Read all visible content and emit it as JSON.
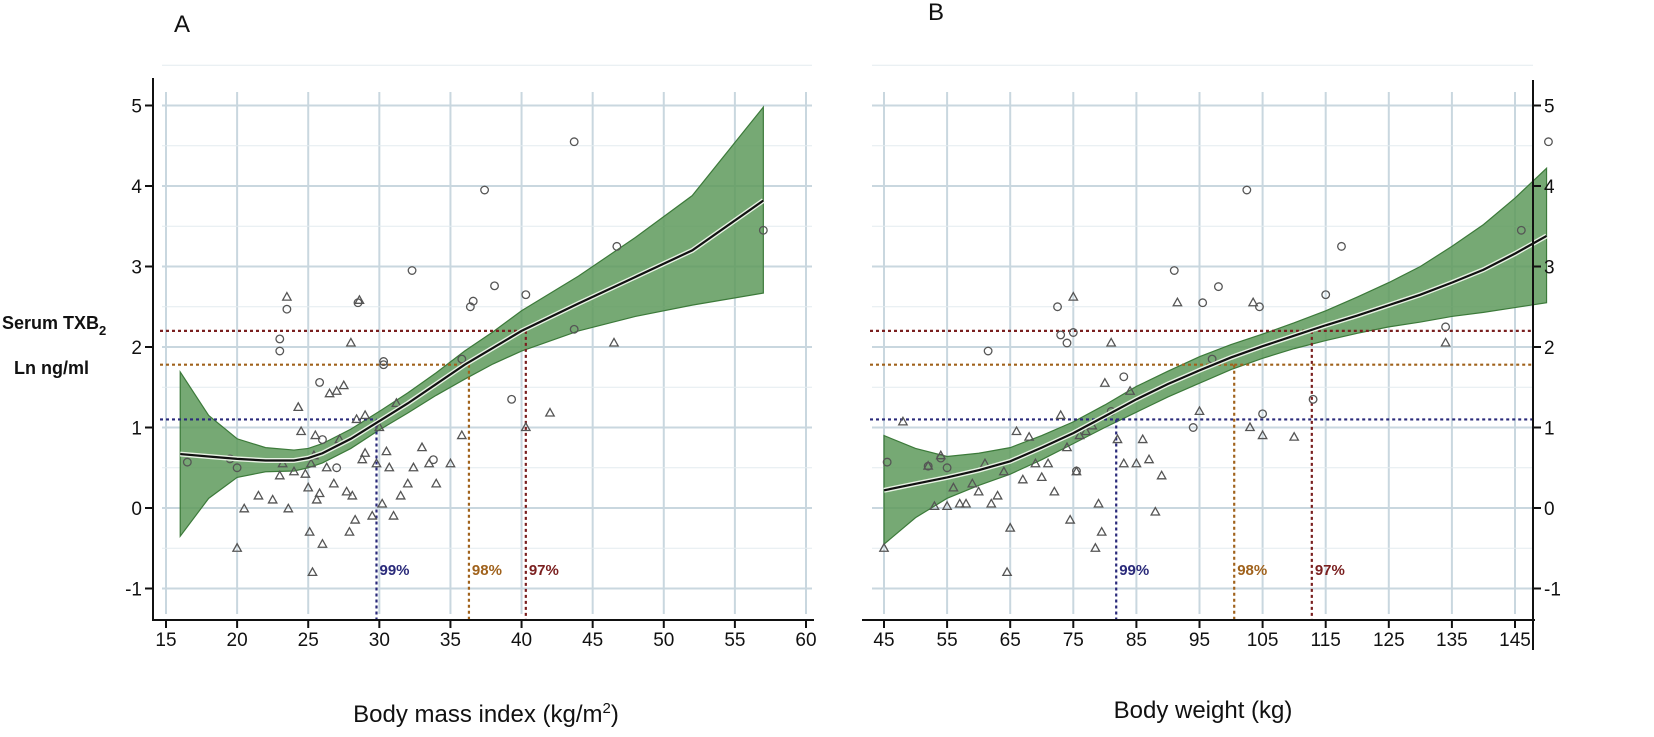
{
  "y_label": {
    "line1": "Serum TXB",
    "sub": "2",
    "line2": "Ln ng/ml"
  },
  "colors": {
    "band": "#5e9a5c",
    "band_edge": "#3c7a3a",
    "grid": "#c9d7df",
    "p99": "#2a2a7a",
    "p98": "#a0621c",
    "p97": "#7a1f1f",
    "point": "#555555"
  },
  "chart_data": [
    {
      "panel": "A",
      "type": "line",
      "xlabel": "Body mass index (kg/m",
      "xlabel_sup": "2",
      "xlabel_end": ")",
      "xlim": [
        14.5,
        60.5
      ],
      "ylim": [
        -1.3,
        5.3
      ],
      "xticks": [
        15,
        20,
        25,
        30,
        35,
        40,
        45,
        50,
        55,
        60
      ],
      "yticks": [
        -1,
        0,
        1,
        2,
        3,
        4,
        5
      ],
      "ytick_side": "left",
      "fit": {
        "x": [
          16,
          18,
          20,
          22,
          24,
          25,
          26,
          28,
          30,
          32,
          34,
          36,
          38,
          40,
          44,
          48,
          52,
          57
        ],
        "y": [
          0.67,
          0.64,
          0.61,
          0.59,
          0.59,
          0.62,
          0.68,
          0.86,
          1.08,
          1.3,
          1.54,
          1.78,
          1.99,
          2.2,
          2.54,
          2.87,
          3.2,
          3.82
        ]
      },
      "ci_lower": [
        -0.35,
        0.12,
        0.38,
        0.45,
        0.46,
        0.5,
        0.56,
        0.74,
        0.97,
        1.18,
        1.4,
        1.6,
        1.79,
        1.95,
        2.2,
        2.38,
        2.52,
        2.67
      ],
      "ci_upper": [
        1.69,
        1.15,
        0.86,
        0.75,
        0.72,
        0.74,
        0.8,
        0.98,
        1.2,
        1.43,
        1.68,
        1.95,
        2.19,
        2.45,
        2.88,
        3.36,
        3.88,
        4.98
      ],
      "thresholds": [
        {
          "label": "99%",
          "y": 1.1,
          "x": 29.8,
          "color_key": "p99"
        },
        {
          "label": "98%",
          "y": 1.78,
          "x": 36.3,
          "color_key": "p98"
        },
        {
          "label": "97%",
          "y": 2.2,
          "x": 40.3,
          "color_key": "p97"
        }
      ],
      "circles": [
        [
          16.5,
          0.57
        ],
        [
          19.5,
          0.61
        ],
        [
          20,
          0.5
        ],
        [
          23,
          2.1
        ],
        [
          23,
          1.95
        ],
        [
          23.5,
          2.47
        ],
        [
          25.8,
          1.56
        ],
        [
          26,
          0.85
        ],
        [
          27,
          0.5
        ],
        [
          28.5,
          2.55
        ],
        [
          30.3,
          1.82
        ],
        [
          30.3,
          1.78
        ],
        [
          32.3,
          2.95
        ],
        [
          33.8,
          0.6
        ],
        [
          35.8,
          1.85
        ],
        [
          36.4,
          2.5
        ],
        [
          36.6,
          2.57
        ],
        [
          37.4,
          3.95
        ],
        [
          38.1,
          2.76
        ],
        [
          39.3,
          1.35
        ],
        [
          40.3,
          2.65
        ],
        [
          43.7,
          4.55
        ],
        [
          43.7,
          2.22
        ],
        [
          46.7,
          3.25
        ],
        [
          57,
          3.45
        ]
      ],
      "triangles": [
        [
          20,
          -0.5
        ],
        [
          20.5,
          -0.01
        ],
        [
          21.5,
          0.15
        ],
        [
          22.5,
          0.1
        ],
        [
          23,
          0.4
        ],
        [
          23.2,
          0.55
        ],
        [
          23.5,
          2.62
        ],
        [
          23.6,
          -0.01
        ],
        [
          24,
          0.45
        ],
        [
          24.3,
          1.25
        ],
        [
          24.5,
          0.95
        ],
        [
          24.8,
          0.42
        ],
        [
          25,
          0.25
        ],
        [
          25.1,
          -0.3
        ],
        [
          25.2,
          0.55
        ],
        [
          25.3,
          -0.8
        ],
        [
          25.4,
          0.65
        ],
        [
          25.5,
          0.9
        ],
        [
          25.6,
          0.1
        ],
        [
          25.8,
          0.18
        ],
        [
          26,
          -0.45
        ],
        [
          26.3,
          0.5
        ],
        [
          26.5,
          1.42
        ],
        [
          26.8,
          0.3
        ],
        [
          27,
          1.45
        ],
        [
          27.2,
          0.85
        ],
        [
          27.5,
          1.52
        ],
        [
          27.7,
          0.2
        ],
        [
          27.9,
          -0.3
        ],
        [
          28,
          2.05
        ],
        [
          28.1,
          0.15
        ],
        [
          28.3,
          -0.15
        ],
        [
          28.4,
          1.1
        ],
        [
          28.6,
          2.58
        ],
        [
          28.8,
          0.6
        ],
        [
          29,
          1.15
        ],
        [
          29,
          0.68
        ],
        [
          29.5,
          -0.1
        ],
        [
          29.8,
          0.55
        ],
        [
          30,
          1.0
        ],
        [
          30.2,
          0.05
        ],
        [
          30.5,
          0.7
        ],
        [
          30.7,
          0.5
        ],
        [
          31,
          -0.1
        ],
        [
          31.2,
          1.3
        ],
        [
          31.5,
          0.15
        ],
        [
          32,
          0.3
        ],
        [
          32.4,
          0.5
        ],
        [
          33,
          0.75
        ],
        [
          33.5,
          0.55
        ],
        [
          34,
          0.3
        ],
        [
          35,
          0.55
        ],
        [
          35.8,
          0.9
        ],
        [
          40.3,
          1.0
        ],
        [
          42,
          1.18
        ],
        [
          46.5,
          2.05
        ]
      ]
    },
    {
      "panel": "B",
      "type": "line",
      "xlabel": "Body weight (kg)",
      "xlim": [
        43.8,
        151
      ],
      "ylim": [
        -1.3,
        5.3
      ],
      "xticks": [
        45,
        55,
        65,
        75,
        85,
        95,
        105,
        115,
        125,
        135,
        145
      ],
      "yticks": [
        -1,
        0,
        1,
        2,
        3,
        4,
        5
      ],
      "ytick_side": "right",
      "fit": {
        "x": [
          45,
          50,
          55,
          60,
          65,
          70,
          75,
          80,
          85,
          90,
          95,
          100,
          105,
          110,
          115,
          120,
          125,
          130,
          135,
          140,
          145,
          150
        ],
        "y": [
          0.22,
          0.3,
          0.38,
          0.47,
          0.58,
          0.75,
          0.93,
          1.14,
          1.35,
          1.54,
          1.71,
          1.87,
          2.01,
          2.14,
          2.27,
          2.39,
          2.52,
          2.65,
          2.8,
          2.96,
          3.16,
          3.38
        ]
      },
      "ci_lower": [
        -0.45,
        -0.12,
        0.12,
        0.28,
        0.42,
        0.6,
        0.8,
        1.0,
        1.19,
        1.38,
        1.55,
        1.72,
        1.86,
        1.98,
        2.08,
        2.17,
        2.25,
        2.31,
        2.38,
        2.43,
        2.49,
        2.55
      ],
      "ci_upper": [
        0.9,
        0.74,
        0.64,
        0.68,
        0.75,
        0.9,
        1.07,
        1.28,
        1.51,
        1.7,
        1.88,
        2.03,
        2.16,
        2.3,
        2.45,
        2.62,
        2.8,
        3.0,
        3.25,
        3.52,
        3.85,
        4.22
      ],
      "thresholds": [
        {
          "label": "99%",
          "y": 1.1,
          "x": 81.8,
          "color_key": "p99"
        },
        {
          "label": "98%",
          "y": 1.78,
          "x": 100.5,
          "color_key": "p98"
        },
        {
          "label": "97%",
          "y": 2.2,
          "x": 112.8,
          "color_key": "p97"
        }
      ],
      "circles": [
        [
          45.5,
          0.57
        ],
        [
          52,
          0.52
        ],
        [
          54,
          0.62
        ],
        [
          55,
          0.5
        ],
        [
          61.5,
          1.95
        ],
        [
          72.5,
          2.5
        ],
        [
          73,
          2.15
        ],
        [
          74,
          2.05
        ],
        [
          75,
          2.18
        ],
        [
          75.5,
          0.46
        ],
        [
          81,
          1.2
        ],
        [
          83,
          1.63
        ],
        [
          91,
          2.95
        ],
        [
          94,
          1.0
        ],
        [
          95.5,
          2.55
        ],
        [
          97,
          1.85
        ],
        [
          98,
          2.75
        ],
        [
          102.5,
          3.95
        ],
        [
          104.5,
          2.5
        ],
        [
          105,
          1.17
        ],
        [
          113,
          1.35
        ],
        [
          115,
          2.65
        ],
        [
          117.5,
          3.25
        ],
        [
          134,
          2.25
        ],
        [
          146,
          3.45
        ],
        [
          150.3,
          4.55
        ]
      ],
      "triangles": [
        [
          45,
          -0.5
        ],
        [
          48,
          1.07
        ],
        [
          52,
          0.52
        ],
        [
          53,
          0.02
        ],
        [
          54,
          0.65
        ],
        [
          55,
          0.02
        ],
        [
          56,
          0.25
        ],
        [
          57,
          0.05
        ],
        [
          58,
          0.05
        ],
        [
          59,
          0.3
        ],
        [
          60,
          0.2
        ],
        [
          61,
          0.55
        ],
        [
          62,
          0.05
        ],
        [
          63,
          0.15
        ],
        [
          64,
          0.45
        ],
        [
          64.5,
          -0.8
        ],
        [
          65,
          -0.25
        ],
        [
          66,
          0.95
        ],
        [
          67,
          0.35
        ],
        [
          68,
          0.88
        ],
        [
          69,
          0.55
        ],
        [
          70,
          0.38
        ],
        [
          71,
          0.55
        ],
        [
          72,
          0.2
        ],
        [
          73,
          1.15
        ],
        [
          74,
          0.75
        ],
        [
          74.5,
          -0.15
        ],
        [
          75,
          2.62
        ],
        [
          75.5,
          0.45
        ],
        [
          76,
          0.9
        ],
        [
          77,
          0.95
        ],
        [
          78,
          1.02
        ],
        [
          78.5,
          -0.5
        ],
        [
          79,
          0.05
        ],
        [
          79.5,
          -0.3
        ],
        [
          80,
          1.55
        ],
        [
          81,
          2.05
        ],
        [
          82,
          0.85
        ],
        [
          83,
          0.55
        ],
        [
          84,
          1.45
        ],
        [
          85,
          0.55
        ],
        [
          86,
          0.85
        ],
        [
          87,
          0.6
        ],
        [
          88,
          -0.05
        ],
        [
          89,
          0.4
        ],
        [
          91.5,
          2.55
        ],
        [
          95,
          1.2
        ],
        [
          103,
          1.0
        ],
        [
          103.5,
          2.55
        ],
        [
          105,
          0.9
        ],
        [
          110,
          0.88
        ],
        [
          134,
          2.05
        ]
      ]
    }
  ],
  "texts": {
    "panel_a": "A",
    "panel_b": "B"
  }
}
